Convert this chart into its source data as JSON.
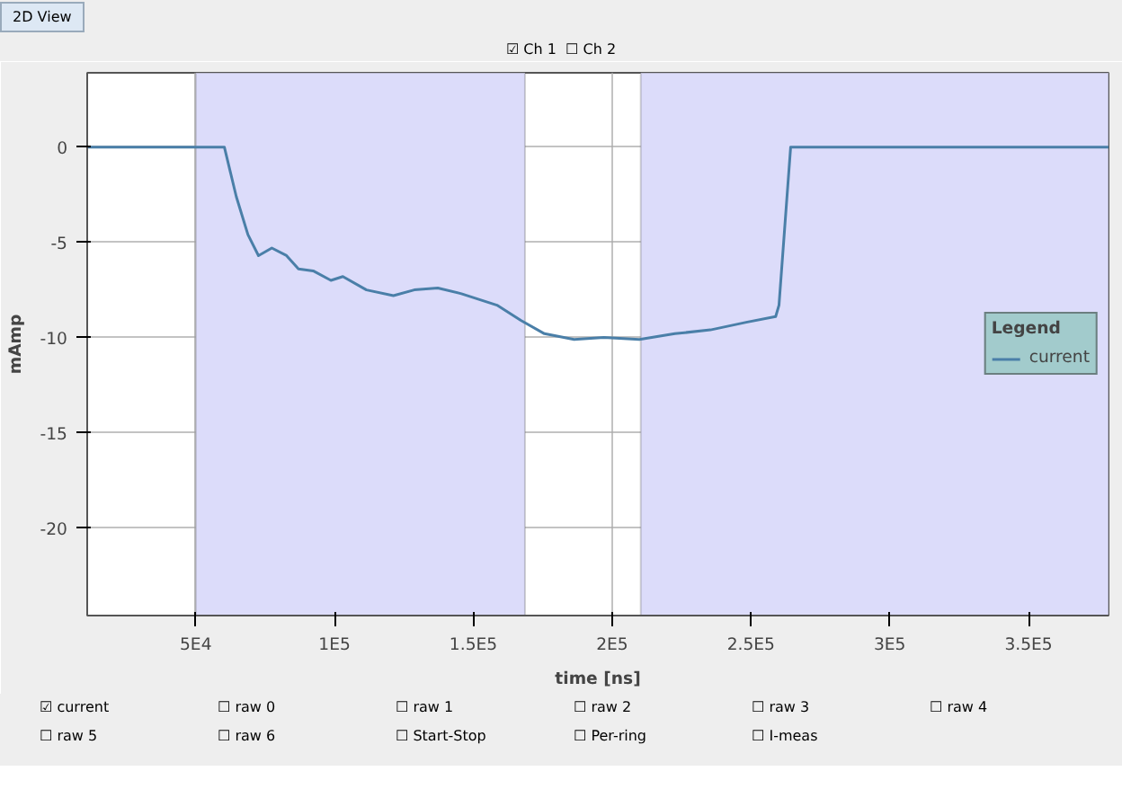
{
  "chart_data": {
    "type": "line",
    "xlabel": "time [ns]",
    "ylabel": "mAmp",
    "legend_title": "Legend",
    "legend": "right",
    "grid": true,
    "xlim": [
      10900,
      378800
    ],
    "ylim": [
      -24.6,
      3.9
    ],
    "xticks": [
      {
        "value": 50000,
        "label": "5E4"
      },
      {
        "value": 100000,
        "label": "1E5"
      },
      {
        "value": 150000,
        "label": "1.5E5"
      },
      {
        "value": 200000,
        "label": "2E5"
      },
      {
        "value": 250000,
        "label": "2.5E5"
      },
      {
        "value": 300000,
        "label": "3E5"
      },
      {
        "value": 350000,
        "label": "3.5E5"
      }
    ],
    "yticks": [
      0,
      -5,
      -10,
      -15,
      -20
    ],
    "bands": [
      {
        "axis": "x",
        "from": 50000,
        "to": 168600,
        "color": "#dcdcfa"
      },
      {
        "axis": "x",
        "from": 210300,
        "to": 378800,
        "color": "#dcdcfa"
      }
    ],
    "series": [
      {
        "name": "current",
        "color": "#4a7fa8",
        "x": [
          10900,
          60300,
          64600,
          68800,
          72600,
          77400,
          82700,
          87000,
          92300,
          98700,
          103000,
          111500,
          121200,
          128700,
          137200,
          145700,
          158500,
          167100,
          175600,
          186300,
          197000,
          209800,
          222600,
          235400,
          248300,
          258900,
          260100,
          264300,
          303800,
          378800
        ],
        "values": [
          0,
          0,
          -2.6,
          -4.6,
          -5.7,
          -5.3,
          -5.7,
          -6.4,
          -6.5,
          -7.0,
          -6.8,
          -7.5,
          -7.8,
          -7.5,
          -7.4,
          -7.7,
          -8.3,
          -9.1,
          -9.8,
          -10.1,
          -10.0,
          -10.1,
          -9.8,
          -9.6,
          -9.2,
          -8.9,
          -8.3,
          0,
          0,
          0
        ]
      }
    ],
    "annotations": [
      "2D View",
      "☑ Ch 1",
      "☐ Ch 2",
      "☑ current",
      "☐ raw 0",
      "☐ raw 1",
      "☐ raw 2",
      "☐ raw 3",
      "☐ raw 4",
      "☐ raw 5",
      "☐ raw 6",
      "☐ Start-Stop",
      "☐ Per-ring",
      "☐ I-meas"
    ]
  }
}
